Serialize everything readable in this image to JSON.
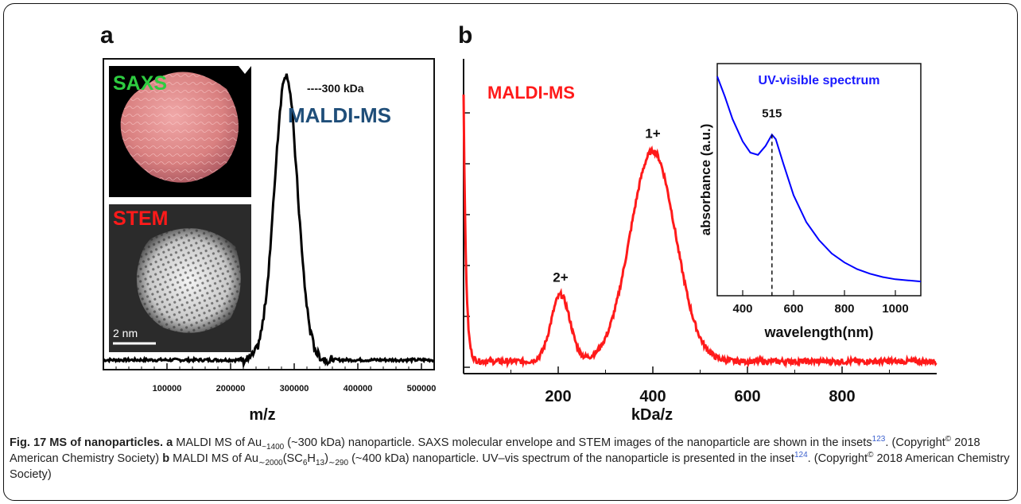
{
  "panels": {
    "a_letter": "a",
    "b_letter": "b"
  },
  "chart_data": [
    {
      "type": "line",
      "panel": "a",
      "xlabel": "m/z",
      "ylabel": "",
      "xlim": [
        0,
        520000
      ],
      "ylim": [
        0,
        1
      ],
      "x_ticks": [
        100000,
        200000,
        300000,
        400000,
        500000
      ],
      "x_tick_labels": [
        "100000",
        "200000",
        "300000",
        "400000",
        "500000"
      ],
      "series": [
        {
          "color": "#000000",
          "peaks": [
            {
              "center": 287000,
              "height": 1.0,
              "width": 18000
            }
          ],
          "baseline": 0.02
        }
      ],
      "annotations": {
        "peak_note": "----300 kDa",
        "method": "MALDI-MS",
        "inset_top_label": "SAXS",
        "inset_bottom_label": "STEM",
        "scale_bar": "2 nm"
      },
      "colors": {
        "method": "#1f4e79",
        "saxs": "#2ecc40",
        "stem": "#ff1a1a",
        "saxs_envelope": "#d98080"
      }
    },
    {
      "type": "line",
      "panel": "b",
      "xlabel": "kDa/z",
      "ylabel": "",
      "xlim": [
        0,
        1000
      ],
      "ylim": [
        0,
        1
      ],
      "x_ticks": [
        200,
        400,
        600,
        800
      ],
      "x_tick_labels": [
        "200",
        "400",
        "600",
        "800"
      ],
      "series": [
        {
          "color": "#ff1a1a",
          "peaks": [
            {
              "center": 205,
              "height": 0.31,
              "width": 20,
              "label": "2+"
            },
            {
              "center": 400,
              "height": 0.98,
              "width": 48,
              "label": "1+"
            }
          ],
          "baseline": 0.02
        }
      ],
      "annotations": {
        "method": "MALDI-MS"
      },
      "colors": {
        "method": "#ff1a1a"
      },
      "inset": {
        "type": "line",
        "title": "UV-visible spectrum",
        "xlabel": "wavelength(nm)",
        "ylabel": "absorbance (a.u.)",
        "xlim": [
          300,
          1100
        ],
        "x_ticks": [
          400,
          600,
          800,
          1000
        ],
        "x_tick_labels": [
          "400",
          "600",
          "800",
          "1000"
        ],
        "peak_label": "515",
        "peak_wavelength": 515,
        "x": [
          300,
          330,
          360,
          400,
          430,
          460,
          490,
          515,
          530,
          560,
          600,
          650,
          700,
          750,
          800,
          850,
          900,
          950,
          1000,
          1050,
          1100
        ],
        "y": [
          0.95,
          0.86,
          0.76,
          0.66,
          0.61,
          0.6,
          0.64,
          0.69,
          0.67,
          0.56,
          0.42,
          0.3,
          0.22,
          0.16,
          0.12,
          0.09,
          0.07,
          0.055,
          0.045,
          0.04,
          0.035
        ],
        "color": "#0000ff",
        "title_color": "#1a1aff"
      }
    }
  ],
  "caption": {
    "lead": "Fig. 17 MS of nanoparticles.",
    "a_bold": "a",
    "a_text_1": "MALDI MS of Au",
    "a_sub_1": "~1400",
    "a_text_2": "(~300 kDa) nanoparticle. SAXS molecular envelope and STEM images of the nanoparticle are shown in the insets",
    "ref_1": "123",
    "a_text_3": ". (Copyright",
    "copyright_mark": "©",
    "a_text_4": " 2018 American Chemistry Society) ",
    "b_bold": "b",
    "b_text_1": " MALDI MS of Au",
    "b_sub_1": "∼2000",
    "b_text_2": "(SC",
    "b_sub_2": "6",
    "b_text_3": "H",
    "b_sub_3": "13",
    "b_text_4": ")",
    "b_sub_4": "∼290",
    "b_text_5": " (~400 kDa) nanoparticle. UV–vis spectrum of the nanoparticle is presented in the inset",
    "ref_2": "124",
    "b_text_6": ". (Copyright",
    "b_text_7": " 2018 American Chemistry Society)"
  }
}
